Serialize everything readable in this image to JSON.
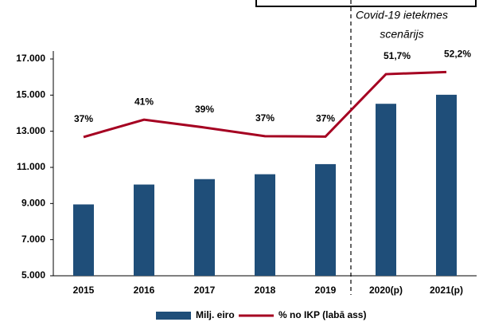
{
  "chart_data": {
    "type": "bar",
    "categories": [
      "2015",
      "2016",
      "2017",
      "2018",
      "2019",
      "2020(p)",
      "2021(p)"
    ],
    "series": [
      {
        "name": "Milj. eiro",
        "type": "bar",
        "color": "#1f4e79",
        "values": [
          8950,
          10050,
          10350,
          10620,
          11180,
          14520,
          15020
        ]
      },
      {
        "name": "% no IKP (labā ass)",
        "type": "line",
        "axis": "y2",
        "color": "#a50021",
        "values": [
          37.2,
          41.2,
          39.4,
          37.4,
          37.3,
          51.7,
          52.2
        ],
        "value_labels": [
          "37%",
          "41%",
          "39%",
          "37%",
          "37%",
          "51,7%",
          "52,2%"
        ]
      }
    ],
    "ylim": [
      5000,
      17000
    ],
    "yticks": [
      {
        "value": 5000,
        "label": "5.000"
      },
      {
        "value": 7000,
        "label": "7.000"
      },
      {
        "value": 9000,
        "label": "9.000"
      },
      {
        "value": 11000,
        "label": "11.000"
      },
      {
        "value": 13000,
        "label": "13.000"
      },
      {
        "value": 15000,
        "label": "15.000"
      },
      {
        "value": 17000,
        "label": "17.000"
      }
    ],
    "y2lim": [
      5.2,
      55.2
    ],
    "annotations": [
      "Covid-19 ietekmes",
      "scenārijs"
    ],
    "grid": false,
    "legend": "bottom"
  }
}
